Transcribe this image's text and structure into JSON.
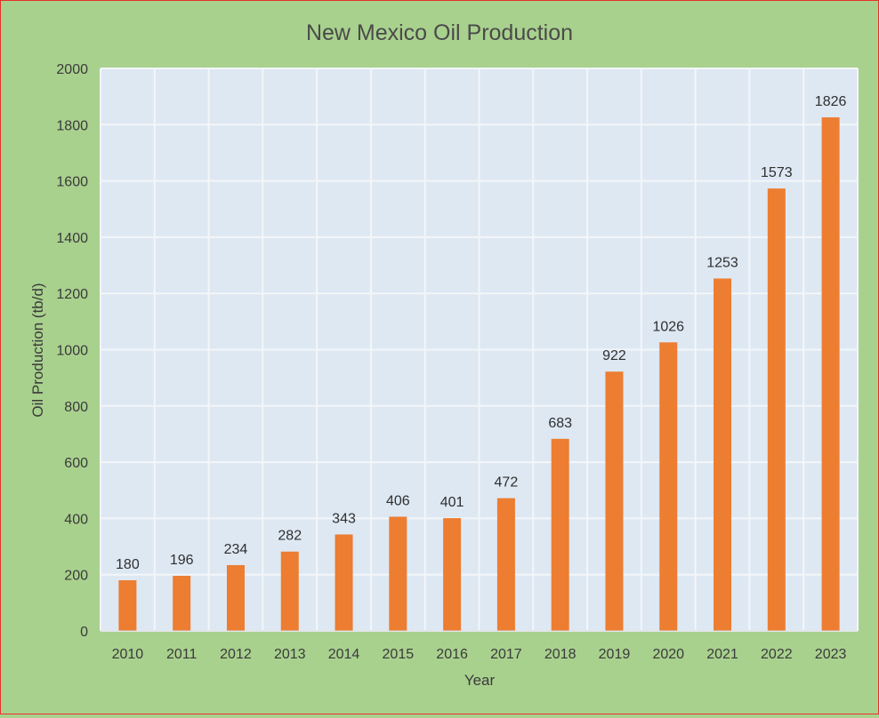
{
  "colors": {
    "background": "#a9d18e",
    "plot_area": "#dde8f3",
    "bar": "#ed7d31",
    "gridline": "#f4f6f8",
    "border": "#e8302a"
  },
  "chart_data": {
    "type": "bar",
    "title": "New Mexico Oil Production",
    "xlabel": "Year",
    "ylabel": "Oil Production (tb/d)",
    "categories": [
      "2010",
      "2011",
      "2012",
      "2013",
      "2014",
      "2015",
      "2016",
      "2017",
      "2018",
      "2019",
      "2020",
      "2021",
      "2022",
      "2023"
    ],
    "values": [
      180,
      196,
      234,
      282,
      343,
      406,
      401,
      472,
      683,
      922,
      1026,
      1253,
      1573,
      1826
    ],
    "ylim": [
      0,
      2000
    ],
    "yticks": [
      0,
      200,
      400,
      600,
      800,
      1000,
      1200,
      1400,
      1600,
      1800,
      2000
    ],
    "grid": true,
    "data_labels": true,
    "legend": "none"
  }
}
